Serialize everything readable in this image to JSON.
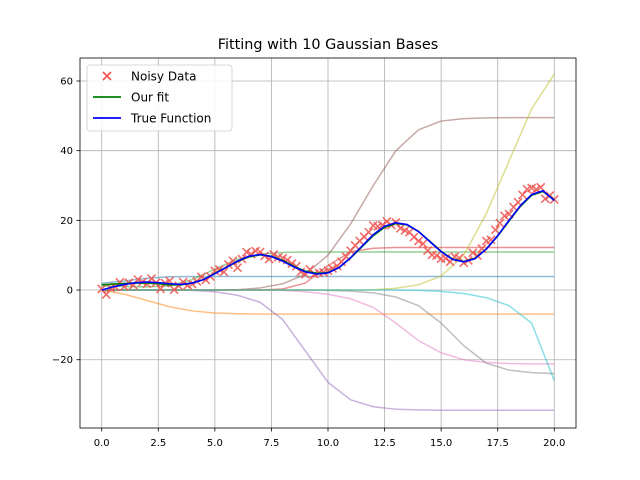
{
  "chart_data": {
    "type": "line",
    "title": "Fitting with 10 Gaussian Bases",
    "xlabel": "",
    "ylabel": "",
    "xlim": [
      -0.96,
      20.96
    ],
    "ylim": [
      -39.6,
      66.6
    ],
    "xticks": [
      0.0,
      2.5,
      5.0,
      7.5,
      10.0,
      12.5,
      15.0,
      17.5,
      20.0
    ],
    "xtick_labels": [
      "0.0",
      "2.5",
      "5.0",
      "7.5",
      "10.0",
      "12.5",
      "15.0",
      "17.5",
      "20.0"
    ],
    "yticks": [
      -20,
      0,
      20,
      40,
      60
    ],
    "ytick_labels": [
      "−20",
      "0",
      "20",
      "40",
      "60"
    ],
    "grid": true,
    "legend_position": "top-left",
    "legend": [
      {
        "label": "Noisy Data",
        "kind": "marker",
        "color": "#ef5350"
      },
      {
        "label": "Our fit",
        "kind": "line",
        "color": "#008000"
      },
      {
        "label": "True Function",
        "kind": "line",
        "color": "#0000ff"
      }
    ],
    "true_function": {
      "name": "True Function",
      "color": "#0000ff",
      "x": [
        0,
        0.5,
        1,
        1.5,
        2,
        2.5,
        3,
        3.5,
        4,
        4.5,
        5,
        5.5,
        6,
        6.5,
        7,
        7.5,
        8,
        8.5,
        9,
        9.5,
        10,
        10.5,
        11,
        11.5,
        12,
        12.5,
        13,
        13.5,
        14,
        14.5,
        15,
        15.5,
        16,
        16.5,
        17,
        17.5,
        18,
        18.5,
        19,
        19.5,
        20
      ],
      "y": [
        0,
        0.9,
        1.6,
        2.1,
        2.3,
        2.1,
        1.8,
        1.6,
        2,
        3,
        4.7,
        6.5,
        8.3,
        9.7,
        10.2,
        9.6,
        8.3,
        6.6,
        5.2,
        4.6,
        4.9,
        6.5,
        9.3,
        12.6,
        15.9,
        18.3,
        19.3,
        18.8,
        16.8,
        13.9,
        11,
        8.8,
        8.1,
        9,
        11.8,
        15.6,
        20,
        24.2,
        27.4,
        28.5,
        25.7
      ]
    },
    "fit": {
      "name": "Our fit",
      "color": "#008000",
      "x": [
        0,
        0.5,
        1,
        1.5,
        2,
        2.5,
        3,
        3.5,
        4,
        4.5,
        5,
        5.5,
        6,
        6.5,
        7,
        7.5,
        8,
        8.5,
        9,
        9.5,
        10,
        10.5,
        11,
        11.5,
        12,
        12.5,
        13,
        13.5,
        14,
        14.5,
        15,
        15.5,
        16,
        16.5,
        17,
        17.5,
        18,
        18.5,
        19,
        19.5,
        20
      ],
      "y": [
        1.5,
        1.7,
        1.9,
        2.0,
        2.0,
        1.8,
        1.5,
        1.5,
        2,
        3,
        4.8,
        6.5,
        8.2,
        9.5,
        10.1,
        9.7,
        8.5,
        6.8,
        5.4,
        4.8,
        5.0,
        6.5,
        9.2,
        12.4,
        15.6,
        18,
        19.1,
        18.7,
        16.8,
        14,
        11.1,
        8.9,
        8.2,
        9.1,
        11.8,
        15.5,
        19.8,
        24,
        27.2,
        28.3,
        25.9
      ]
    },
    "noisy_data": {
      "name": "Noisy Data",
      "color": "#ef5350",
      "x": [
        0.0,
        0.2,
        0.4,
        0.6,
        0.8,
        1.0,
        1.2,
        1.4,
        1.6,
        1.8,
        2.0,
        2.2,
        2.4,
        2.6,
        2.8,
        3.0,
        3.2,
        3.4,
        3.6,
        3.8,
        4.0,
        4.2,
        4.4,
        4.6,
        4.8,
        5.0,
        5.2,
        5.4,
        5.6,
        5.8,
        6.0,
        6.2,
        6.4,
        6.6,
        6.8,
        7.0,
        7.2,
        7.4,
        7.6,
        7.8,
        8.0,
        8.2,
        8.4,
        8.6,
        8.8,
        9.0,
        9.2,
        9.4,
        9.6,
        9.8,
        10.0,
        10.2,
        10.4,
        10.6,
        10.8,
        11.0,
        11.2,
        11.4,
        11.6,
        11.8,
        12.0,
        12.2,
        12.4,
        12.6,
        12.8,
        13.0,
        13.2,
        13.4,
        13.6,
        13.8,
        14.0,
        14.2,
        14.4,
        14.6,
        14.8,
        15.0,
        15.2,
        15.4,
        15.6,
        15.8,
        16.0,
        16.2,
        16.4,
        16.6,
        16.8,
        17.0,
        17.2,
        17.4,
        17.6,
        17.8,
        18.0,
        18.2,
        18.4,
        18.6,
        18.8,
        19.0,
        19.2,
        19.4,
        19.6,
        19.8,
        20.0
      ],
      "y": [
        0.3,
        -1.3,
        0.6,
        0.9,
        2.2,
        1.0,
        2.1,
        1.4,
        3.0,
        2.3,
        1.8,
        3.3,
        2.1,
        0.3,
        2.0,
        2.6,
        0.1,
        1.2,
        2.3,
        1.4,
        1.7,
        2.5,
        3.8,
        2.9,
        3.9,
        5.5,
        5.9,
        5.2,
        7.3,
        8.4,
        6.4,
        8.9,
        10.9,
        10.3,
        11.2,
        10.9,
        9.8,
        8.9,
        10.2,
        9.4,
        9.1,
        8.6,
        7.6,
        6.8,
        5.2,
        4.5,
        5.9,
        4.6,
        4.9,
        5.1,
        5.6,
        6.2,
        6.9,
        8.1,
        9.6,
        11.3,
        12.8,
        14.1,
        15.3,
        16.6,
        18.5,
        18.3,
        18.6,
        19.7,
        18.6,
        19.4,
        17.7,
        17.1,
        16.6,
        15.2,
        14.1,
        13.3,
        11.3,
        10.1,
        9.9,
        9.0,
        9.1,
        8.1,
        9.6,
        9.2,
        7.8,
        8.5,
        10.7,
        9.9,
        11.9,
        14.1,
        14.4,
        17.3,
        19.2,
        21.3,
        21.8,
        23.8,
        25.2,
        27.3,
        28.9,
        29.3,
        28.9,
        29.5,
        26.2,
        27.1,
        26.0
      ]
    },
    "bases": [
      {
        "name": "basis-1",
        "color": "#1f77b4",
        "x": [
          0,
          1,
          2,
          3,
          4,
          5,
          6,
          7,
          8,
          9,
          10,
          11,
          12,
          13,
          14,
          15,
          16,
          17,
          18,
          19,
          20
        ],
        "y": [
          2.0,
          2.6,
          3.4,
          3.8,
          3.9,
          3.9,
          3.9,
          3.9,
          3.9,
          3.9,
          3.9,
          3.9,
          3.9,
          3.9,
          3.9,
          3.9,
          3.9,
          3.9,
          3.9,
          3.9,
          3.9
        ]
      },
      {
        "name": "basis-2",
        "color": "#ff7f0e",
        "x": [
          0,
          1,
          2,
          3,
          4,
          5,
          6,
          7,
          8,
          9,
          10,
          11,
          12,
          13,
          14,
          15,
          16,
          17,
          18,
          19,
          20
        ],
        "y": [
          0,
          -1.2,
          -3.0,
          -4.8,
          -6.0,
          -6.6,
          -6.8,
          -6.9,
          -6.9,
          -6.9,
          -6.9,
          -6.9,
          -6.9,
          -6.9,
          -6.9,
          -6.9,
          -6.9,
          -6.9,
          -6.9,
          -6.9,
          -6.9
        ]
      },
      {
        "name": "basis-3",
        "color": "#2ca02c",
        "x": [
          0,
          1,
          2,
          3,
          4,
          5,
          6,
          7,
          8,
          9,
          10,
          11,
          12,
          13,
          14,
          15,
          16,
          17,
          18,
          19,
          20
        ],
        "y": [
          1.2,
          1.0,
          0.9,
          1.2,
          3.0,
          6.0,
          8.8,
          10.3,
          10.8,
          10.9,
          10.9,
          10.9,
          10.9,
          10.9,
          10.9,
          10.9,
          10.9,
          10.9,
          10.9,
          10.9,
          10.9
        ]
      },
      {
        "name": "basis-4",
        "color": "#d62728",
        "x": [
          0,
          1,
          2,
          3,
          4,
          5,
          6,
          7,
          8,
          9,
          10,
          11,
          12,
          13,
          14,
          15,
          16,
          17,
          18,
          19,
          20
        ],
        "y": [
          0,
          0,
          0,
          0,
          0,
          0,
          0,
          0,
          0.3,
          2.0,
          7.0,
          11.0,
          12.0,
          12.2,
          12.2,
          12.2,
          12.2,
          12.2,
          12.2,
          12.2,
          12.2
        ]
      },
      {
        "name": "basis-5",
        "color": "#9467bd",
        "x": [
          0,
          1,
          2,
          3,
          4,
          5,
          6,
          7,
          8,
          9,
          10,
          11,
          12,
          13,
          14,
          15,
          16,
          17,
          18,
          19,
          20
        ],
        "y": [
          0,
          0,
          0,
          0,
          -0.1,
          -0.5,
          -1.5,
          -3.5,
          -8.5,
          -17.5,
          -26.5,
          -31.5,
          -33.5,
          -34.2,
          -34.4,
          -34.5,
          -34.5,
          -34.5,
          -34.5,
          -34.5,
          -34.5
        ]
      },
      {
        "name": "basis-6",
        "color": "#8c564b",
        "x": [
          0,
          1,
          2,
          3,
          4,
          5,
          6,
          7,
          8,
          9,
          10,
          11,
          12,
          13,
          14,
          15,
          16,
          17,
          18,
          19,
          20
        ],
        "y": [
          0,
          0,
          0,
          0,
          0,
          0,
          0.1,
          0.6,
          1.8,
          4.5,
          10.0,
          19.0,
          30.0,
          40.0,
          46.0,
          48.5,
          49.2,
          49.4,
          49.5,
          49.5,
          49.5
        ]
      },
      {
        "name": "basis-7",
        "color": "#e377c2",
        "x": [
          0,
          1,
          2,
          3,
          4,
          5,
          6,
          7,
          8,
          9,
          10,
          11,
          12,
          13,
          14,
          15,
          16,
          17,
          18,
          19,
          20
        ],
        "y": [
          0,
          0,
          0,
          0,
          0,
          0,
          0,
          0,
          -0.1,
          -0.5,
          -1.2,
          -2.5,
          -5.0,
          -9.5,
          -14.5,
          -18.0,
          -20.0,
          -20.8,
          -21.1,
          -21.2,
          -21.2
        ]
      },
      {
        "name": "basis-8",
        "color": "#7f7f7f",
        "x": [
          0,
          1,
          2,
          3,
          4,
          5,
          6,
          7,
          8,
          9,
          10,
          11,
          12,
          13,
          14,
          15,
          16,
          17,
          18,
          19,
          20
        ],
        "y": [
          0,
          0,
          0,
          0,
          0,
          0,
          0,
          0,
          0,
          0,
          -0.1,
          -0.3,
          -0.8,
          -2.0,
          -4.5,
          -9.5,
          -16.0,
          -21.0,
          -23.0,
          -23.7,
          -24.0
        ]
      },
      {
        "name": "basis-9",
        "color": "#bcbd22",
        "x": [
          0,
          1,
          2,
          3,
          4,
          5,
          6,
          7,
          8,
          9,
          10,
          11,
          12,
          13,
          14,
          15,
          16,
          17,
          18,
          19,
          20
        ],
        "y": [
          0,
          0,
          0,
          0,
          0,
          0,
          0,
          0,
          0,
          0,
          0,
          0,
          0.1,
          0.5,
          1.5,
          4.0,
          10.0,
          22.0,
          37.0,
          52.0,
          62.0
        ]
      },
      {
        "name": "basis-10",
        "color": "#17becf",
        "x": [
          0,
          1,
          2,
          3,
          4,
          5,
          6,
          7,
          8,
          9,
          10,
          11,
          12,
          13,
          14,
          15,
          16,
          17,
          18,
          19,
          20
        ],
        "y": [
          0,
          0,
          0,
          0,
          0,
          0,
          0,
          0,
          0,
          0,
          0,
          0,
          0,
          0,
          -0.1,
          -0.4,
          -1.0,
          -2.2,
          -4.5,
          -9.5,
          -26.0
        ]
      }
    ]
  }
}
